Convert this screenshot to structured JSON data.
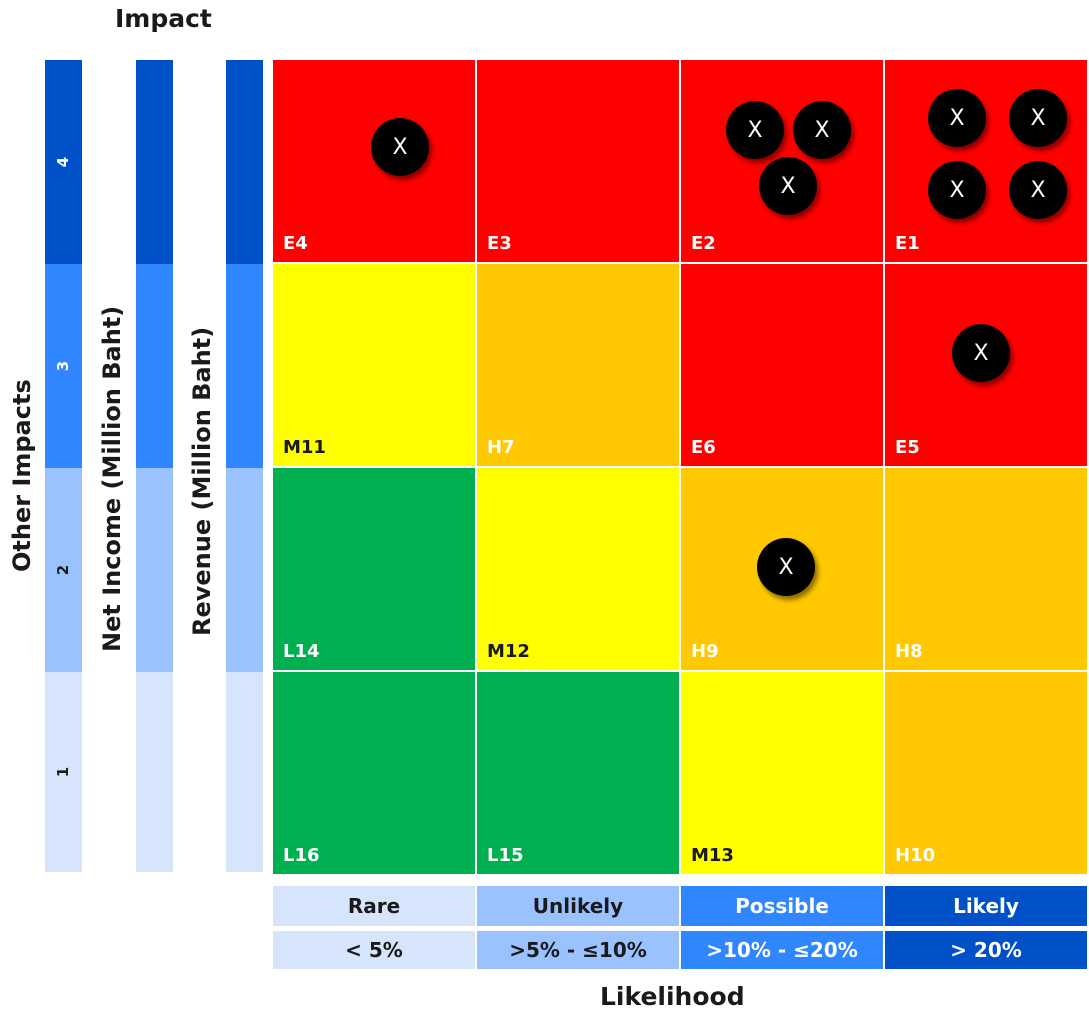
{
  "titles": {
    "impact": "Impact",
    "likelihood": "Likelihood"
  },
  "impact_axes": [
    {
      "label": "Other Impacts",
      "levels": [
        "4",
        "3",
        "2",
        "1"
      ]
    },
    {
      "label": "Net Income (Million Baht)"
    },
    {
      "label": "Revenue (Million Baht)"
    }
  ],
  "impact_level_colors": [
    "#0050c8",
    "#2f86ff",
    "#9ac2ff",
    "#d6e5fc"
  ],
  "grid": {
    "rows": [
      [
        {
          "code": "E4",
          "level": "extreme",
          "markers": 1
        },
        {
          "code": "E3",
          "level": "extreme",
          "markers": 0
        },
        {
          "code": "E2",
          "level": "extreme",
          "markers": 3
        },
        {
          "code": "E1",
          "level": "extreme",
          "markers": 4
        }
      ],
      [
        {
          "code": "M11",
          "level": "medium",
          "markers": 0
        },
        {
          "code": "H7",
          "level": "high",
          "markers": 0
        },
        {
          "code": "E6",
          "level": "extreme",
          "markers": 0
        },
        {
          "code": "E5",
          "level": "extreme",
          "markers": 1
        }
      ],
      [
        {
          "code": "L14",
          "level": "low",
          "markers": 0
        },
        {
          "code": "M12",
          "level": "medium",
          "markers": 0
        },
        {
          "code": "H9",
          "level": "high",
          "markers": 1
        },
        {
          "code": "H8",
          "level": "high",
          "markers": 0
        }
      ],
      [
        {
          "code": "L16",
          "level": "low",
          "markers": 0
        },
        {
          "code": "L15",
          "level": "low",
          "markers": 0
        },
        {
          "code": "M13",
          "level": "medium",
          "markers": 0
        },
        {
          "code": "H10",
          "level": "high",
          "markers": 0
        }
      ]
    ],
    "level_colors": {
      "extreme": "#ff0000",
      "high": "#ffc800",
      "medium": "#ffff00",
      "low": "#00b050"
    },
    "marker_symbol": "X"
  },
  "likelihood": {
    "categories": [
      "Rare",
      "Unlikely",
      "Possible",
      "Likely"
    ],
    "ranges": [
      "< 5%",
      ">5% - ≤10%",
      ">10% - ≤20%",
      "> 20%"
    ],
    "colors": [
      "#d6e5fc",
      "#9ac2ff",
      "#2f86ff",
      "#0050c8"
    ]
  }
}
